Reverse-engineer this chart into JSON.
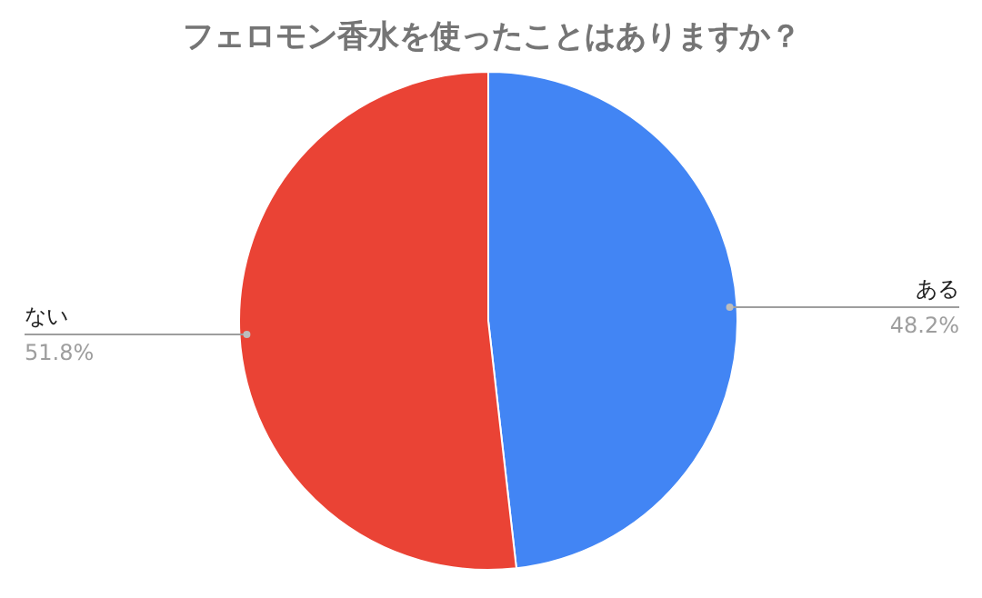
{
  "chart_data": {
    "type": "pie",
    "title": "フェロモン香水を使ったことはありますか？",
    "categories": [
      "ある",
      "ない"
    ],
    "values": [
      48.2,
      51.8
    ],
    "value_labels": [
      "48.2%",
      "51.8%"
    ],
    "colors": [
      "#4285f4",
      "#ea4335"
    ]
  }
}
